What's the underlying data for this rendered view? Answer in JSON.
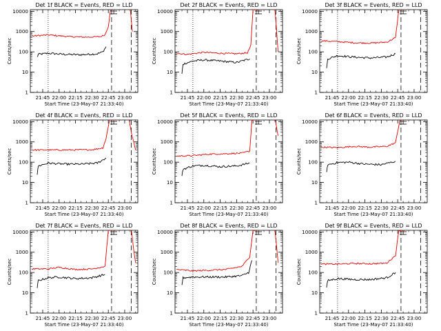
{
  "colors": {
    "events": "#000000",
    "lld": "#e00000",
    "axes": "#000000",
    "background": "#ffffff"
  },
  "common": {
    "ylabel": "Counts/sec",
    "xlabel": "Start Time (23-May-07 21:33:40)",
    "x_tick_labels": [
      "21:45",
      "22:00",
      "22:15",
      "22:30",
      "22:45",
      "23:00"
    ],
    "y_tick_labels": [
      "1",
      "10",
      "100",
      "1000",
      "10000"
    ]
  },
  "chart_data": [
    {
      "type": "line",
      "title": "Det 1f BLACK = Events, RED = LLD",
      "xlim": [
        "21:33:40",
        "23:12:00"
      ],
      "ylim": [
        1,
        12000
      ],
      "yscale": "log",
      "series": [
        {
          "name": "BLACK = Events",
          "values": [
            {
              "x": "21:36",
              "y": null
            },
            {
              "x": "21:40",
              "y": 55
            },
            {
              "x": "21:41",
              "y": 75
            },
            {
              "x": "21:50",
              "y": 85
            },
            {
              "x": "22:05",
              "y": 75
            },
            {
              "x": "22:20",
              "y": 72
            },
            {
              "x": "22:35",
              "y": 80
            },
            {
              "x": "22:40",
              "y": 100
            },
            {
              "x": "22:43",
              "y": 180
            }
          ]
        },
        {
          "name": "RED = LLD",
          "values": [
            {
              "x": "21:35",
              "y": 600
            },
            {
              "x": "21:50",
              "y": 680
            },
            {
              "x": "22:10",
              "y": 560
            },
            {
              "x": "22:25",
              "y": 530
            },
            {
              "x": "22:38",
              "y": 560
            },
            {
              "x": "22:42",
              "y": 700
            },
            {
              "x": "22:45",
              "y": 1800
            },
            {
              "x": "22:47",
              "y": 12000
            },
            {
              "x": "22:55",
              "y": 14000
            },
            {
              "x": "23:05",
              "y": 14000
            },
            {
              "x": "23:07",
              "y": 1000
            }
          ]
        }
      ]
    },
    {
      "type": "line",
      "title": "Det 2f BLACK = Events, RED = LLD",
      "xlim": [
        "21:33:40",
        "23:12:00"
      ],
      "ylim": [
        1,
        12000
      ],
      "yscale": "log",
      "series": [
        {
          "name": "BLACK = Events",
          "values": [
            {
              "x": "21:40",
              "y": 8
            },
            {
              "x": "21:41",
              "y": 25
            },
            {
              "x": "21:50",
              "y": 35
            },
            {
              "x": "22:00",
              "y": 40
            },
            {
              "x": "22:15",
              "y": 35
            },
            {
              "x": "22:30",
              "y": 30
            },
            {
              "x": "22:42",
              "y": 45
            }
          ]
        },
        {
          "name": "RED = LLD",
          "values": [
            {
              "x": "21:35",
              "y": 85
            },
            {
              "x": "21:45",
              "y": 75
            },
            {
              "x": "22:00",
              "y": 95
            },
            {
              "x": "22:15",
              "y": 85
            },
            {
              "x": "22:30",
              "y": 80
            },
            {
              "x": "22:40",
              "y": 90
            },
            {
              "x": "22:43",
              "y": 200
            },
            {
              "x": "22:45",
              "y": 12000
            },
            {
              "x": "23:05",
              "y": 14000
            },
            {
              "x": "23:08",
              "y": 100
            }
          ]
        }
      ]
    },
    {
      "type": "line",
      "title": "Det 3f BLACK = Events, RED = LLD",
      "xlim": [
        "21:33:40",
        "23:12:00"
      ],
      "ylim": [
        1,
        12000
      ],
      "yscale": "log",
      "series": [
        {
          "name": "BLACK = Events",
          "values": [
            {
              "x": "21:40",
              "y": 15
            },
            {
              "x": "21:41",
              "y": 45
            },
            {
              "x": "21:50",
              "y": 65
            },
            {
              "x": "22:05",
              "y": 55
            },
            {
              "x": "22:20",
              "y": 50
            },
            {
              "x": "22:35",
              "y": 55
            },
            {
              "x": "22:43",
              "y": 80
            }
          ]
        },
        {
          "name": "RED = LLD",
          "values": [
            {
              "x": "21:35",
              "y": 350
            },
            {
              "x": "21:50",
              "y": 320
            },
            {
              "x": "22:05",
              "y": 280
            },
            {
              "x": "22:20",
              "y": 270
            },
            {
              "x": "22:35",
              "y": 300
            },
            {
              "x": "22:43",
              "y": 500
            },
            {
              "x": "22:46",
              "y": 12000
            },
            {
              "x": "23:05",
              "y": 14000
            }
          ]
        }
      ]
    },
    {
      "type": "line",
      "title": "Det 4f BLACK = Events, RED = LLD",
      "xlim": [
        "21:33:40",
        "23:12:00"
      ],
      "ylim": [
        1,
        12000
      ],
      "yscale": "log",
      "series": [
        {
          "name": "BLACK = Events",
          "values": [
            {
              "x": "21:40",
              "y": 25
            },
            {
              "x": "21:41",
              "y": 65
            },
            {
              "x": "21:50",
              "y": 90
            },
            {
              "x": "22:05",
              "y": 80
            },
            {
              "x": "22:20",
              "y": 80
            },
            {
              "x": "22:35",
              "y": 90
            },
            {
              "x": "22:43",
              "y": 160
            }
          ]
        },
        {
          "name": "RED = LLD",
          "values": [
            {
              "x": "21:35",
              "y": 400
            },
            {
              "x": "21:50",
              "y": 400
            },
            {
              "x": "22:10",
              "y": 400
            },
            {
              "x": "22:30",
              "y": 410
            },
            {
              "x": "22:40",
              "y": 500
            },
            {
              "x": "22:43",
              "y": 1500
            },
            {
              "x": "22:46",
              "y": 12000
            },
            {
              "x": "23:04",
              "y": 14000
            },
            {
              "x": "23:06",
              "y": 3000
            },
            {
              "x": "23:10",
              "y": 400
            }
          ]
        }
      ]
    },
    {
      "type": "line",
      "title": "Det 5f BLACK = Events, RED = LLD",
      "xlim": [
        "21:33:40",
        "23:12:00"
      ],
      "ylim": [
        1,
        12000
      ],
      "yscale": "log",
      "series": [
        {
          "name": "BLACK = Events",
          "values": [
            {
              "x": "21:40",
              "y": 20
            },
            {
              "x": "21:41",
              "y": 45
            },
            {
              "x": "21:50",
              "y": 65
            },
            {
              "x": "22:00",
              "y": 70
            },
            {
              "x": "22:15",
              "y": 60
            },
            {
              "x": "22:30",
              "y": 65
            },
            {
              "x": "22:42",
              "y": 90
            }
          ]
        },
        {
          "name": "RED = LLD",
          "values": [
            {
              "x": "21:35",
              "y": 200
            },
            {
              "x": "21:50",
              "y": 210
            },
            {
              "x": "22:05",
              "y": 250
            },
            {
              "x": "22:20",
              "y": 260
            },
            {
              "x": "22:35",
              "y": 280
            },
            {
              "x": "22:42",
              "y": 350
            },
            {
              "x": "22:44",
              "y": 12000
            },
            {
              "x": "23:05",
              "y": 14000
            },
            {
              "x": "23:08",
              "y": 2000
            }
          ]
        }
      ]
    },
    {
      "type": "line",
      "title": "Det 6f BLACK = Events, RED = LLD",
      "xlim": [
        "21:33:40",
        "23:12:00"
      ],
      "ylim": [
        1,
        12000
      ],
      "yscale": "log",
      "series": [
        {
          "name": "BLACK = Events",
          "values": [
            {
              "x": "21:40",
              "y": 30
            },
            {
              "x": "21:41",
              "y": 75
            },
            {
              "x": "21:50",
              "y": 95
            },
            {
              "x": "22:00",
              "y": 100
            },
            {
              "x": "22:15",
              "y": 80
            },
            {
              "x": "22:30",
              "y": 75
            },
            {
              "x": "22:43",
              "y": 110
            }
          ]
        },
        {
          "name": "RED = LLD",
          "values": [
            {
              "x": "21:35",
              "y": 550
            },
            {
              "x": "21:50",
              "y": 520
            },
            {
              "x": "22:05",
              "y": 600
            },
            {
              "x": "22:20",
              "y": 550
            },
            {
              "x": "22:35",
              "y": 600
            },
            {
              "x": "22:43",
              "y": 900
            },
            {
              "x": "22:47",
              "y": 12000
            },
            {
              "x": "23:05",
              "y": 14000
            }
          ]
        }
      ]
    },
    {
      "type": "line",
      "title": "Det 7f BLACK = Events, RED = LLD",
      "xlim": [
        "21:33:40",
        "23:12:00"
      ],
      "ylim": [
        1,
        12000
      ],
      "yscale": "log",
      "series": [
        {
          "name": "BLACK = Events",
          "values": [
            {
              "x": "21:40",
              "y": 18
            },
            {
              "x": "21:41",
              "y": 40
            },
            {
              "x": "21:50",
              "y": 55
            },
            {
              "x": "22:00",
              "y": 60
            },
            {
              "x": "22:15",
              "y": 50
            },
            {
              "x": "22:30",
              "y": 55
            },
            {
              "x": "22:42",
              "y": 80
            }
          ]
        },
        {
          "name": "RED = LLD",
          "values": [
            {
              "x": "21:35",
              "y": 150
            },
            {
              "x": "21:50",
              "y": 150
            },
            {
              "x": "22:00",
              "y": 180
            },
            {
              "x": "22:15",
              "y": 140
            },
            {
              "x": "22:30",
              "y": 150
            },
            {
              "x": "22:42",
              "y": 200
            },
            {
              "x": "22:45",
              "y": 12000
            },
            {
              "x": "23:06",
              "y": 14000
            },
            {
              "x": "23:08",
              "y": 1500
            },
            {
              "x": "23:10",
              "y": 300
            }
          ]
        }
      ]
    },
    {
      "type": "line",
      "title": "Det 8f BLACK = Events, RED = LLD",
      "xlim": [
        "21:33:40",
        "23:12:00"
      ],
      "ylim": [
        1,
        12000
      ],
      "yscale": "log",
      "series": [
        {
          "name": "BLACK = Events",
          "values": [
            {
              "x": "21:40",
              "y": 25
            },
            {
              "x": "21:41",
              "y": 55
            },
            {
              "x": "21:50",
              "y": 60
            },
            {
              "x": "22:05",
              "y": 60
            },
            {
              "x": "22:20",
              "y": 60
            },
            {
              "x": "22:35",
              "y": 70
            },
            {
              "x": "22:41",
              "y": 100
            },
            {
              "x": "22:44",
              "y": 400
            }
          ]
        },
        {
          "name": "RED = LLD",
          "values": [
            {
              "x": "21:35",
              "y": 140
            },
            {
              "x": "21:50",
              "y": 120
            },
            {
              "x": "22:05",
              "y": 130
            },
            {
              "x": "22:20",
              "y": 140
            },
            {
              "x": "22:35",
              "y": 200
            },
            {
              "x": "22:42",
              "y": 600
            },
            {
              "x": "22:45",
              "y": 12000
            },
            {
              "x": "23:05",
              "y": 14000
            },
            {
              "x": "23:08",
              "y": 300
            }
          ]
        }
      ]
    },
    {
      "type": "line",
      "title": "Det 9f BLACK = Events, RED = LLD",
      "xlim": [
        "21:33:40",
        "23:12:00"
      ],
      "ylim": [
        1,
        12000
      ],
      "yscale": "log",
      "series": [
        {
          "name": "BLACK = Events",
          "values": [
            {
              "x": "21:40",
              "y": 18
            },
            {
              "x": "21:41",
              "y": 40
            },
            {
              "x": "21:50",
              "y": 50
            },
            {
              "x": "22:05",
              "y": 45
            },
            {
              "x": "22:20",
              "y": 45
            },
            {
              "x": "22:35",
              "y": 55
            },
            {
              "x": "22:43",
              "y": 100
            }
          ]
        },
        {
          "name": "RED = LLD",
          "values": [
            {
              "x": "21:35",
              "y": 260
            },
            {
              "x": "21:50",
              "y": 260
            },
            {
              "x": "22:05",
              "y": 280
            },
            {
              "x": "22:20",
              "y": 270
            },
            {
              "x": "22:35",
              "y": 290
            },
            {
              "x": "22:43",
              "y": 700
            },
            {
              "x": "22:46",
              "y": 12000
            },
            {
              "x": "23:05",
              "y": 14000
            }
          ]
        }
      ]
    }
  ]
}
